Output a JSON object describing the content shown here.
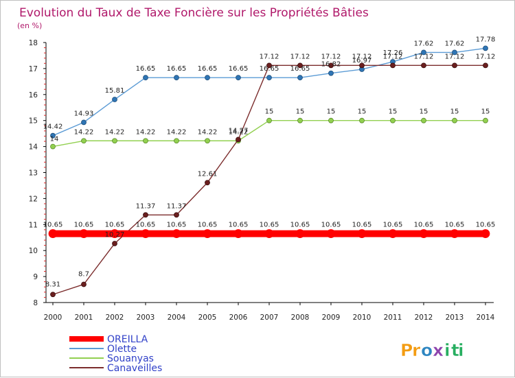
{
  "chart_data": {
    "type": "line",
    "title": "Evolution du Taux de Taxe Foncière sur les Propriétés Bâties",
    "subtitle": "(en %)",
    "xlabel": "",
    "ylabel": "(en %)",
    "x": [
      "2000",
      "2001",
      "2002",
      "2003",
      "2004",
      "2005",
      "2006",
      "2007",
      "2008",
      "2009",
      "2010",
      "2011",
      "2012",
      "2013",
      "2014"
    ],
    "ylim": [
      8,
      18
    ],
    "yticks": [
      8,
      9,
      10,
      11,
      12,
      13,
      14,
      15,
      16,
      17,
      18
    ],
    "grid": false,
    "series": [
      {
        "name": "OREILLA",
        "color": "#ff0000",
        "values": [
          10.65,
          10.65,
          10.65,
          10.65,
          10.65,
          10.65,
          10.65,
          10.65,
          10.65,
          10.65,
          10.65,
          10.65,
          10.65,
          10.65,
          10.65
        ],
        "labels": [
          "10.65",
          "10.65",
          "10.65",
          "10.65",
          "10.65",
          "10.65",
          "10.65",
          "10.65",
          "10.65",
          "10.65",
          "10.65",
          "10.65",
          "10.65",
          "10.65",
          "10.65"
        ]
      },
      {
        "name": "Olette",
        "color": "#5b9bd5",
        "values": [
          14.42,
          14.93,
          15.81,
          16.65,
          16.65,
          16.65,
          16.65,
          16.65,
          16.65,
          16.82,
          16.97,
          17.26,
          17.62,
          17.62,
          17.78
        ],
        "labels": [
          "14.42",
          "14.93",
          "15.81",
          "16.65",
          "16.65",
          "16.65",
          "16.65",
          "16.65",
          "16.65",
          "16.82",
          "16.97",
          "17.26",
          "17.62",
          "17.62",
          "17.78"
        ]
      },
      {
        "name": "Souanyas",
        "color": "#92d050",
        "values": [
          14,
          14.22,
          14.22,
          14.22,
          14.22,
          14.22,
          14.22,
          15,
          15,
          15,
          15,
          15,
          15,
          15,
          15
        ],
        "labels": [
          "14",
          "14.22",
          "14.22",
          "14.22",
          "14.22",
          "14.22",
          "14.22",
          "15",
          "15",
          "15",
          "15",
          "15",
          "15",
          "15",
          "15"
        ]
      },
      {
        "name": "Canaveilles",
        "color": "#7b2c2c",
        "values": [
          8.31,
          8.7,
          10.27,
          11.37,
          11.37,
          12.61,
          14.27,
          17.12,
          17.12,
          17.12,
          17.12,
          17.12,
          17.12,
          17.12,
          17.12
        ],
        "labels": [
          "8.31",
          "8.7",
          "10.27",
          "11.37",
          "11.37",
          "12.61",
          "14.27",
          "17.12",
          "17.12",
          "17.12",
          "17.12",
          "17.12",
          "17.12",
          "17.12",
          "17.12"
        ]
      }
    ],
    "legend_position": "bottom-left"
  },
  "logo": {
    "text": "Proxiti",
    "letters": [
      "P",
      "r",
      "o",
      "x",
      "i",
      "t",
      "i"
    ],
    "colors": [
      "#f39c12",
      "#f39c12",
      "#2e86c1",
      "#8e44ad",
      "#27ae60",
      "#27ae60",
      "#27ae60"
    ]
  }
}
